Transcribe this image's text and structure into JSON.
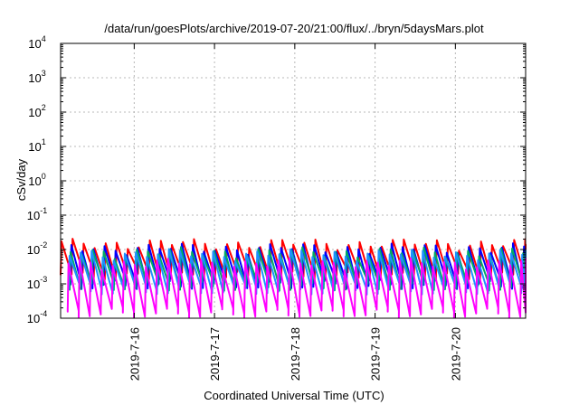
{
  "chart_data": {
    "type": "line",
    "title": "/data/run/goesPlots/archive/2019-07-20/21:00/flux/../bryn/5daysMars.plot",
    "xlabel": "Coordinated Universal Time (UTC)",
    "ylabel": "cSv/day",
    "yscale": "log",
    "ylim": [
      0.0001,
      10000
    ],
    "xlim": [
      "2019-07-15T02:00",
      "2019-07-20T21:00"
    ],
    "y_ticks": [
      {
        "base": "10",
        "exp": "-4",
        "value": 0.0001
      },
      {
        "base": "10",
        "exp": "-3",
        "value": 0.001
      },
      {
        "base": "10",
        "exp": "-2",
        "value": 0.01
      },
      {
        "base": "10",
        "exp": "-1",
        "value": 0.1
      },
      {
        "base": "10",
        "exp": "0",
        "value": 1
      },
      {
        "base": "10",
        "exp": "1",
        "value": 10
      },
      {
        "base": "10",
        "exp": "2",
        "value": 100
      },
      {
        "base": "10",
        "exp": "3",
        "value": 1000
      },
      {
        "base": "10",
        "exp": "4",
        "value": 10000
      }
    ],
    "x_ticks": [
      {
        "label": "2019-7-16",
        "value": "2019-07-16T00:00"
      },
      {
        "label": "2019-7-17",
        "value": "2019-07-17T00:00"
      },
      {
        "label": "2019-7-18",
        "value": "2019-07-18T00:00"
      },
      {
        "label": "2019-7-19",
        "value": "2019-07-19T00:00"
      },
      {
        "label": "2019-7-20",
        "value": "2019-07-20T00:00"
      }
    ],
    "grid": true,
    "legend": "none",
    "sawtooth_period_hours": 3.3,
    "series": [
      {
        "color": "#ff0000",
        "peak": 0.015,
        "trough": 0.0018,
        "phase_hours": 0.0
      },
      {
        "color": "#0000ff",
        "peak": 0.011,
        "trough": 0.001,
        "phase_hours": 0.35
      },
      {
        "color": "#00aa66",
        "peak": 0.0085,
        "trough": 0.0009,
        "phase_hours": 0.6
      },
      {
        "color": "#1e90ff",
        "peak": 0.0075,
        "trough": 0.0007,
        "phase_hours": 0.9
      },
      {
        "color": "#ff00ff",
        "peak": 0.004,
        "trough": 0.00015,
        "phase_hours": 1.2
      }
    ]
  }
}
